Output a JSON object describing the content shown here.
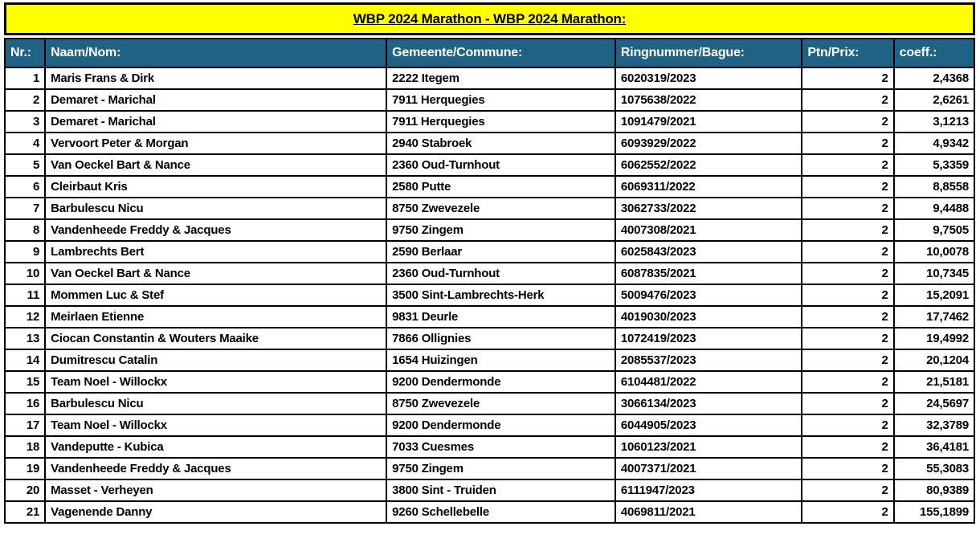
{
  "title_banner": {
    "text": "WBP 2024 Marathon - WBP 2024 Marathon:"
  },
  "colors": {
    "banner_bg": "#FFFF00",
    "header_bg": "#1F6284",
    "header_text": "#FFFFFF",
    "border": "#000000",
    "row_bg": "#FFFFFF",
    "text": "#000000"
  },
  "table": {
    "columns": [
      {
        "label": "Nr.:",
        "align": "right"
      },
      {
        "label": "Naam/Nom:",
        "align": "left"
      },
      {
        "label": "Gemeente/Commune:",
        "align": "left"
      },
      {
        "label": "Ringnummer/Bague:",
        "align": "left"
      },
      {
        "label": "Ptn/Prix:",
        "align": "right"
      },
      {
        "label": "coeff.:",
        "align": "right"
      }
    ],
    "rows": [
      [
        "1",
        "Maris Frans & Dirk",
        "2222 Itegem",
        "6020319/2023",
        "2",
        "2,4368"
      ],
      [
        "2",
        "Demaret - Marichal",
        "7911 Herquegies",
        "1075638/2022",
        "2",
        "2,6261"
      ],
      [
        "3",
        "Demaret - Marichal",
        "7911 Herquegies",
        "1091479/2021",
        "2",
        "3,1213"
      ],
      [
        "4",
        "Vervoort Peter & Morgan",
        "2940 Stabroek",
        "6093929/2022",
        "2",
        "4,9342"
      ],
      [
        "5",
        "Van Oeckel Bart & Nance",
        "2360 Oud-Turnhout",
        "6062552/2022",
        "2",
        "5,3359"
      ],
      [
        "6",
        "Cleirbaut Kris",
        "2580 Putte",
        "6069311/2022",
        "2",
        "8,8558"
      ],
      [
        "7",
        "Barbulescu Nicu",
        "8750 Zwevezele",
        "3062733/2022",
        "2",
        "9,4488"
      ],
      [
        "8",
        "Vandenheede Freddy & Jacques",
        "9750 Zingem",
        "4007308/2021",
        "2",
        "9,7505"
      ],
      [
        "9",
        "Lambrechts Bert",
        "2590 Berlaar",
        "6025843/2023",
        "2",
        "10,0078"
      ],
      [
        "10",
        "Van Oeckel Bart & Nance",
        "2360 Oud-Turnhout",
        "6087835/2021",
        "2",
        "10,7345"
      ],
      [
        "11",
        "Mommen Luc & Stef",
        "3500 Sint-Lambrechts-Herk",
        "5009476/2023",
        "2",
        "15,2091"
      ],
      [
        "12",
        "Meirlaen Etienne",
        "9831 Deurle",
        "4019030/2023",
        "2",
        "17,7462"
      ],
      [
        "13",
        "Ciocan Constantin & Wouters Maaike",
        "7866 Ollignies",
        "1072419/2023",
        "2",
        "19,4992"
      ],
      [
        "14",
        "Dumitrescu Catalin",
        "1654 Huizingen",
        "2085537/2023",
        "2",
        "20,1204"
      ],
      [
        "15",
        "Team Noel - Willockx",
        "9200 Dendermonde",
        "6104481/2022",
        "2",
        "21,5181"
      ],
      [
        "16",
        "Barbulescu Nicu",
        "8750 Zwevezele",
        "3066134/2023",
        "2",
        "24,5697"
      ],
      [
        "17",
        "Team Noel - Willockx",
        "9200 Dendermonde",
        "6044905/2023",
        "2",
        "32,3789"
      ],
      [
        "18",
        "Vandeputte - Kubica",
        "7033 Cuesmes",
        "1060123/2021",
        "2",
        "36,4181"
      ],
      [
        "19",
        "Vandenheede Freddy & Jacques",
        "9750 Zingem",
        "4007371/2021",
        "2",
        "55,3083"
      ],
      [
        "20",
        "Masset - Verheyen",
        "3800 Sint - Truiden",
        "6111947/2023",
        "2",
        "80,9389"
      ],
      [
        "21",
        "Vagenende Danny",
        "9260 Schellebelle",
        "4069811/2021",
        "2",
        "155,1899"
      ]
    ]
  }
}
